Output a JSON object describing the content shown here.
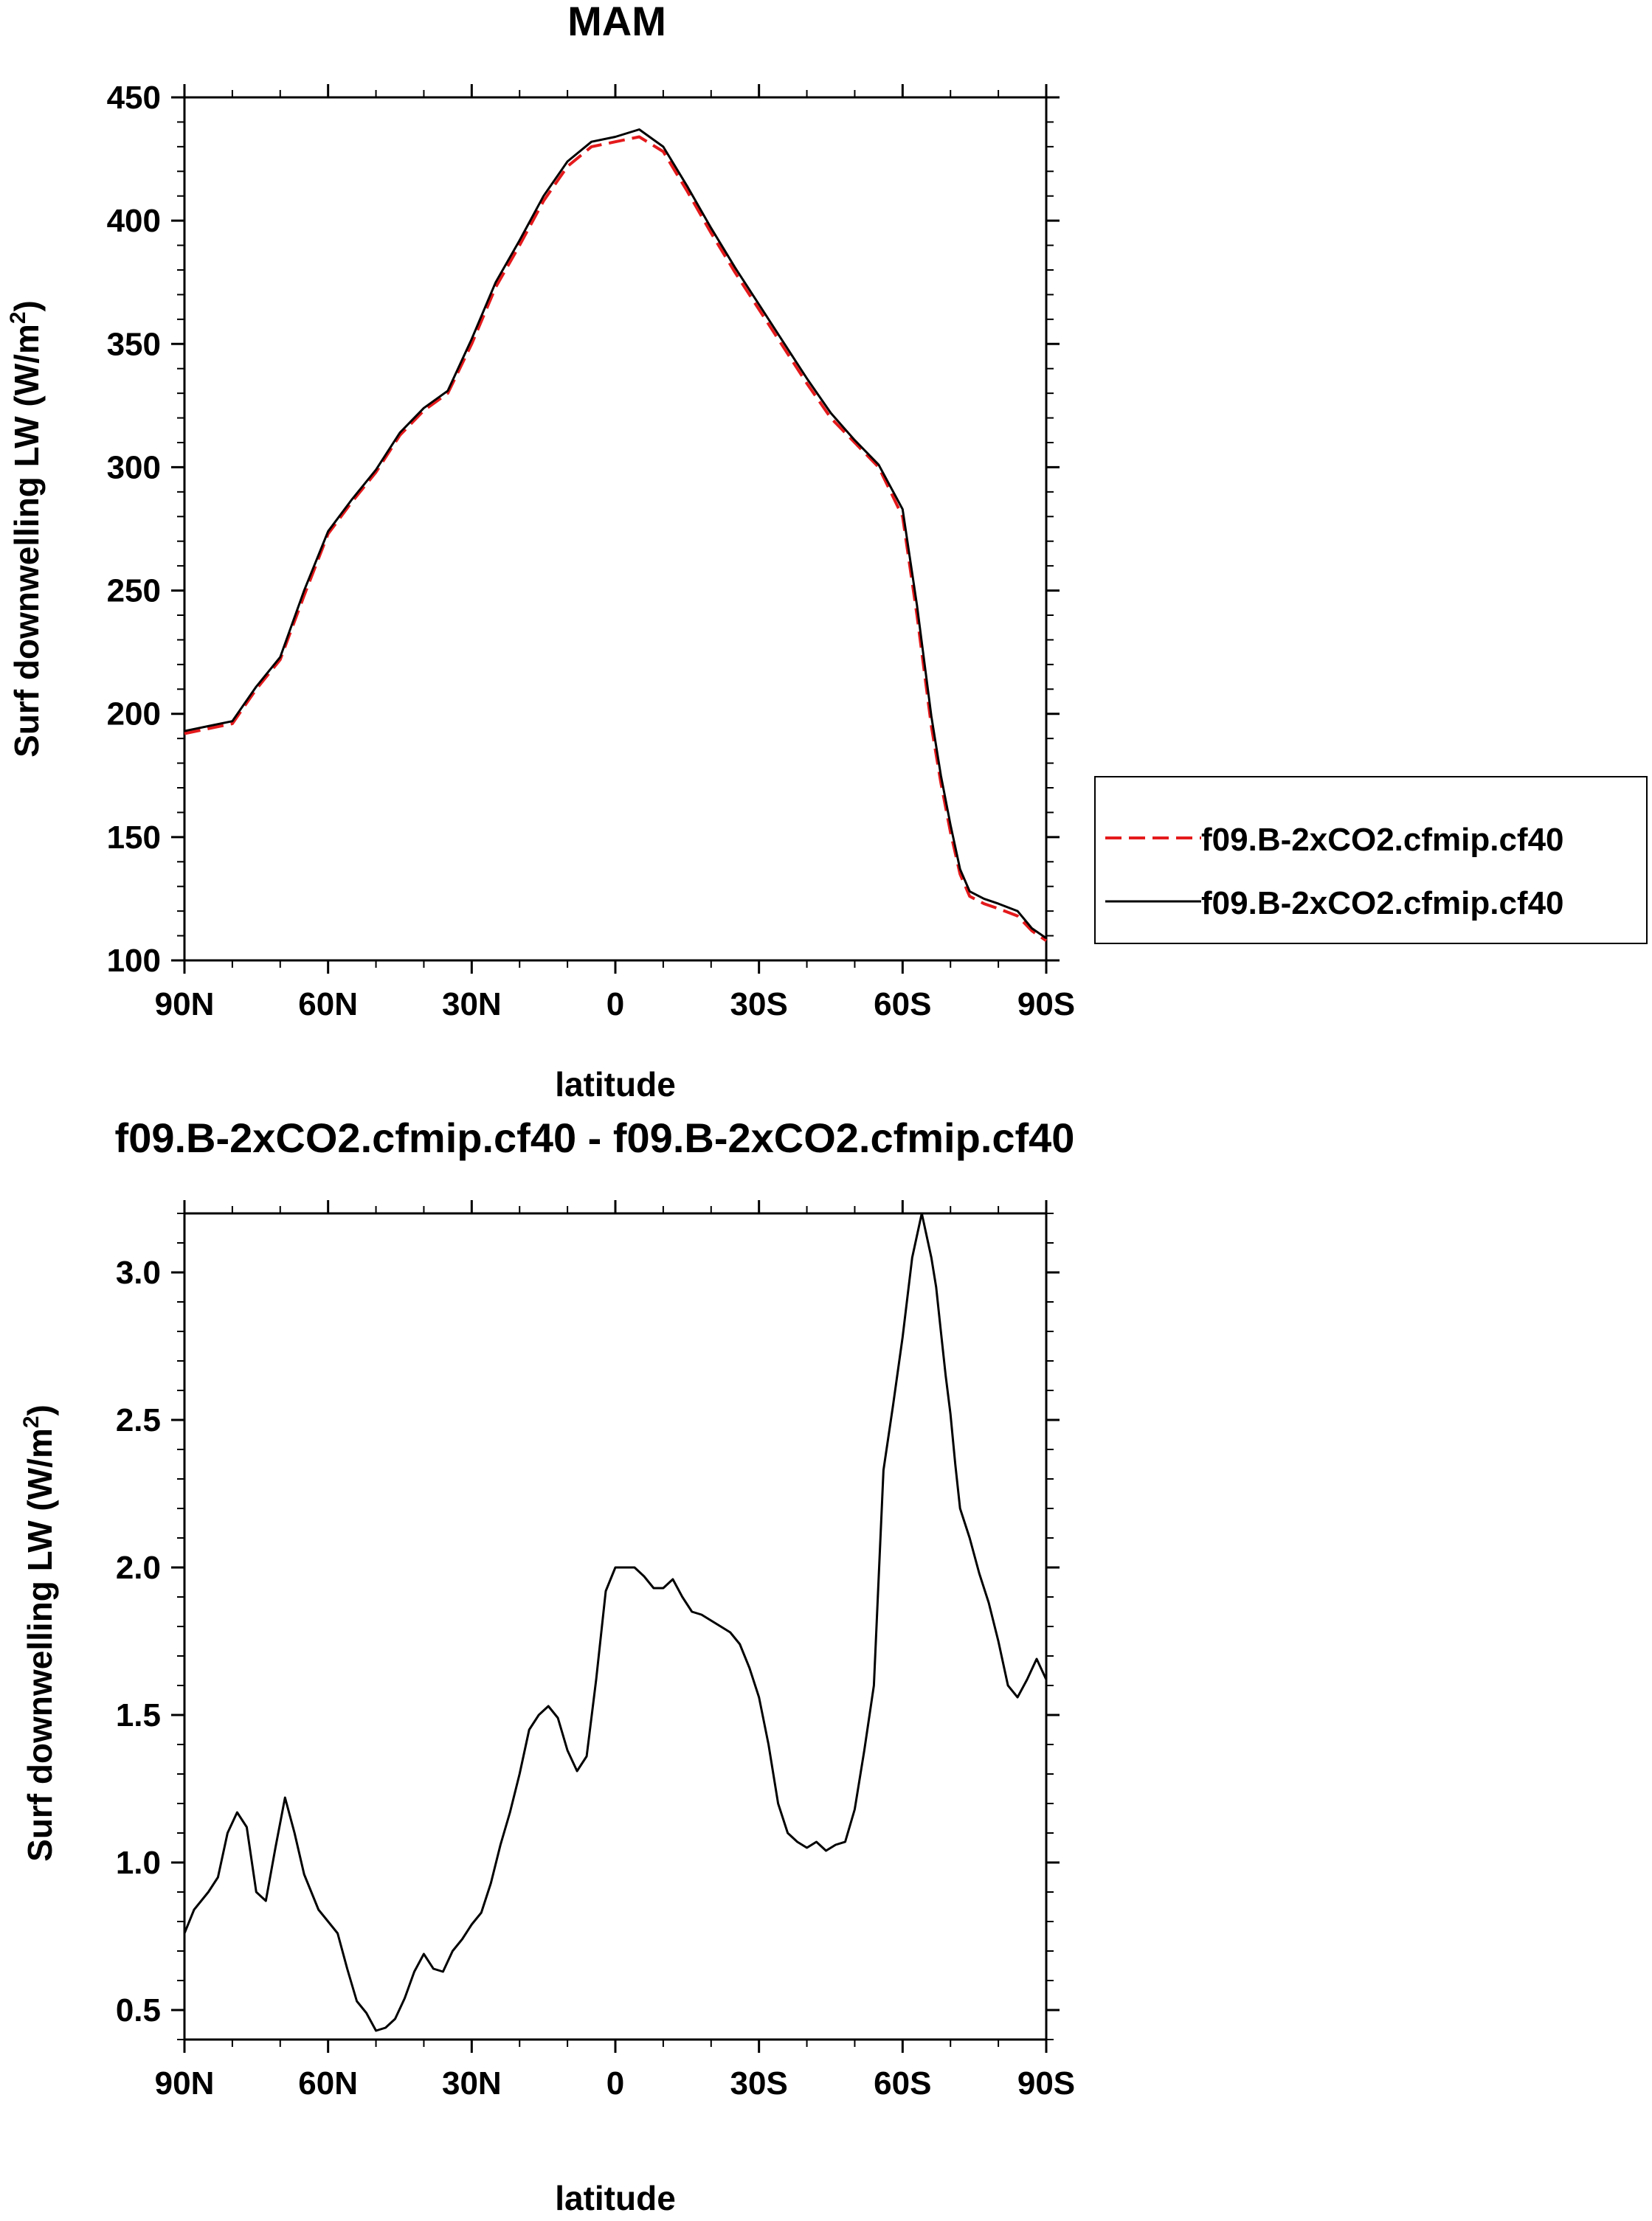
{
  "chart_data": [
    {
      "type": "line",
      "title": "MAM",
      "xlabel": "latitude",
      "ylabel_main": "Surf downwelling LW (W/m",
      "ylabel_sup": "2",
      "ylabel_close": ")",
      "xlim": [
        90,
        -90
      ],
      "ylim": [
        100,
        450
      ],
      "x_ticks": [
        90,
        60,
        30,
        0,
        -30,
        -60,
        -90
      ],
      "x_tick_labels": [
        "90N",
        "60N",
        "30N",
        "0",
        "30S",
        "60S",
        "90S"
      ],
      "y_ticks": [
        100,
        150,
        200,
        250,
        300,
        350,
        400,
        450
      ],
      "y_tick_labels": [
        "100",
        "150",
        "200",
        "250",
        "300",
        "350",
        "400",
        "450"
      ],
      "legend_position": "right",
      "x": [
        90,
        85,
        80,
        75,
        70,
        65,
        60,
        55,
        50,
        45,
        40,
        35,
        30,
        25,
        20,
        15,
        10,
        5,
        0,
        -5,
        -10,
        -15,
        -20,
        -25,
        -30,
        -35,
        -40,
        -45,
        -50,
        -55,
        -60,
        -63,
        -66,
        -68,
        -70,
        -72,
        -74,
        -77,
        -80,
        -84,
        -87,
        -90
      ],
      "series": [
        {
          "name": "f09.B-2xCO2.cfmip.cf40",
          "color": "#e41a1c",
          "dash": "dashed",
          "values": [
            192,
            194,
            196,
            210,
            222,
            248,
            273,
            286,
            298,
            313,
            323,
            330,
            350,
            373,
            390,
            408,
            422,
            430,
            432,
            434,
            428,
            412,
            395,
            379,
            364,
            349,
            334,
            320,
            310,
            300,
            280,
            240,
            195,
            172,
            152,
            135,
            126,
            123,
            121,
            118,
            112,
            108
          ]
        },
        {
          "name": "f09.B-2xCO2.cfmip.cf40",
          "color": "#000000",
          "dash": "solid",
          "values": [
            193,
            195,
            197,
            211,
            223,
            250,
            274,
            287,
            299,
            314,
            324,
            331,
            352,
            375,
            392,
            410,
            424,
            432,
            434,
            437,
            430,
            414,
            397,
            381,
            366,
            351,
            336,
            322,
            311,
            301,
            283,
            244,
            199,
            175,
            155,
            137,
            128,
            125,
            123,
            120,
            113,
            109
          ]
        }
      ]
    },
    {
      "type": "line",
      "title": "f09.B-2xCO2.cfmip.cf40 - f09.B-2xCO2.cfmip.cf40",
      "xlabel": "latitude",
      "ylabel_main": "Surf downwelling LW (W/m",
      "ylabel_sup": "2",
      "ylabel_close": ")",
      "xlim": [
        90,
        -90
      ],
      "ylim": [
        0.4,
        3.2
      ],
      "x_ticks": [
        90,
        60,
        30,
        0,
        -30,
        -60,
        -90
      ],
      "x_tick_labels": [
        "90N",
        "60N",
        "30N",
        "0",
        "30S",
        "60S",
        "90S"
      ],
      "y_ticks": [
        0.5,
        1.0,
        1.5,
        2.0,
        2.5,
        3.0
      ],
      "y_tick_labels": [
        "0.5",
        "1.0",
        "1.5",
        "2.0",
        "2.5",
        "3.0"
      ],
      "x": [
        90,
        88,
        85,
        83,
        81,
        79,
        77,
        75,
        73,
        71,
        69,
        67,
        65,
        62,
        60,
        58,
        56,
        54,
        52,
        50,
        48,
        46,
        44,
        42,
        40,
        38,
        36,
        34,
        32,
        30,
        28,
        26,
        24,
        22,
        20,
        18,
        16,
        14,
        12,
        10,
        8,
        6,
        4,
        2,
        0,
        -2,
        -4,
        -6,
        -8,
        -10,
        -12,
        -14,
        -16,
        -18,
        -20,
        -22,
        -24,
        -26,
        -28,
        -30,
        -32,
        -34,
        -36,
        -38,
        -40,
        -42,
        -44,
        -46,
        -48,
        -50,
        -52,
        -54,
        -56,
        -58,
        -60,
        -62,
        -64,
        -66,
        -67,
        -68,
        -69,
        -70,
        -71,
        -72,
        -74,
        -76,
        -78,
        -80,
        -82,
        -84,
        -86,
        -88,
        -90
      ],
      "series": [
        {
          "name": "",
          "color": "#000000",
          "dash": "solid",
          "values": [
            0.76,
            0.84,
            0.9,
            0.95,
            1.1,
            1.17,
            1.12,
            0.9,
            0.87,
            1.05,
            1.22,
            1.1,
            0.96,
            0.84,
            0.8,
            0.76,
            0.64,
            0.53,
            0.49,
            0.43,
            0.44,
            0.47,
            0.54,
            0.63,
            0.69,
            0.64,
            0.63,
            0.7,
            0.74,
            0.79,
            0.83,
            0.93,
            1.06,
            1.17,
            1.3,
            1.45,
            1.5,
            1.53,
            1.49,
            1.38,
            1.31,
            1.36,
            1.62,
            1.92,
            2.0,
            2.0,
            2.0,
            1.97,
            1.93,
            1.93,
            1.96,
            1.9,
            1.85,
            1.84,
            1.82,
            1.8,
            1.78,
            1.74,
            1.66,
            1.56,
            1.4,
            1.2,
            1.1,
            1.07,
            1.05,
            1.07,
            1.04,
            1.06,
            1.07,
            1.18,
            1.38,
            1.6,
            2.33,
            2.55,
            2.78,
            3.05,
            3.2,
            3.05,
            2.95,
            2.8,
            2.65,
            2.52,
            2.35,
            2.2,
            2.1,
            1.98,
            1.88,
            1.75,
            1.6,
            1.56,
            1.62,
            1.69,
            1.62
          ]
        }
      ]
    }
  ]
}
